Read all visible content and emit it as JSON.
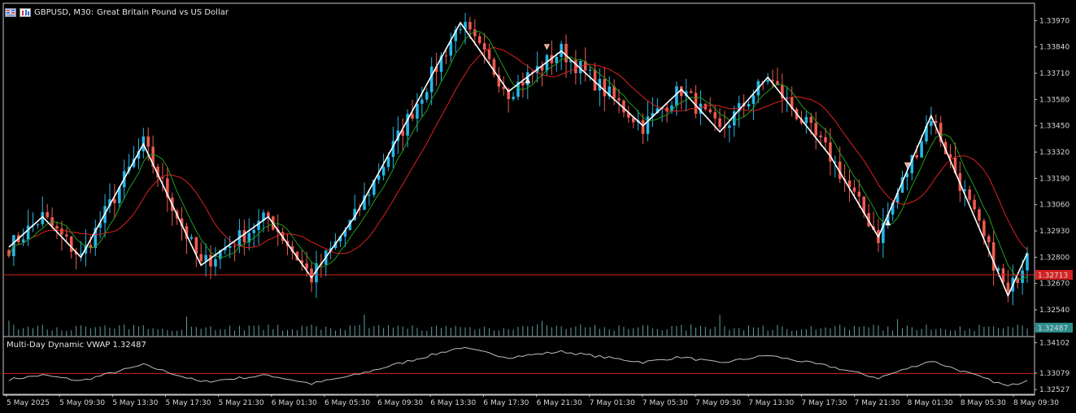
{
  "header": {
    "symbol_timeframe": "GBPUSD, M30:",
    "description": "Great Britain Pound vs US Dollar"
  },
  "icons": [
    "chart-menu-icon",
    "trade-panel-icon"
  ],
  "colors": {
    "background": "#000000",
    "bull_candle": "#26b7e6",
    "bear_candle": "#ef5b4e",
    "zigzag": "#ffffff",
    "ma_fast": "#1f9d1f",
    "ma_slow": "#e02020",
    "price_line": "#d42222",
    "volume": "#5fa0a0",
    "axis_text": "#d8d8d8"
  },
  "price_badge": {
    "label": "1.32713",
    "color": "#d42222"
  },
  "volume_badge": {
    "label": "1.32487",
    "color": "#2c8c8c"
  },
  "subwindow": {
    "title": "Multi-Day Dynamic VWAP 1.32487"
  },
  "chart_data": [
    {
      "type": "candlestick",
      "price_ticks": [
        "1.33970",
        "1.33840",
        "1.33710",
        "1.33580",
        "1.33450",
        "1.33320",
        "1.33190",
        "1.33060",
        "1.32930",
        "1.32800",
        "1.32670",
        "1.32540"
      ],
      "time_labels": [
        "5 May 2025",
        "5 May 09:30",
        "5 May 13:30",
        "5 May 17:30",
        "5 May 21:30",
        "6 May 01:30",
        "6 May 05:30",
        "6 May 09:30",
        "6 May 13:30",
        "6 May 17:30",
        "6 May 21:30",
        "7 May 01:30",
        "7 May 05:30",
        "7 May 09:30",
        "7 May 13:30",
        "7 May 17:30",
        "7 May 21:30",
        "8 May 01:30",
        "8 May 05:30",
        "8 May 09:30"
      ],
      "current_price": 1.32713,
      "ylim": [
        1.325,
        1.3404
      ],
      "zigzag_points": [
        [
          0,
          1.3285
        ],
        [
          7,
          1.33
        ],
        [
          15,
          1.328
        ],
        [
          28,
          1.3336
        ],
        [
          40,
          1.3276
        ],
        [
          54,
          1.33
        ],
        [
          63,
          1.327
        ],
        [
          72,
          1.33
        ],
        [
          94,
          1.3396
        ],
        [
          104,
          1.3362
        ],
        [
          115,
          1.3382
        ],
        [
          132,
          1.3345
        ],
        [
          140,
          1.3363
        ],
        [
          148,
          1.3342
        ],
        [
          158,
          1.3369
        ],
        [
          171,
          1.333
        ],
        [
          181,
          1.329
        ],
        [
          192,
          1.335
        ],
        [
          208,
          1.3261
        ],
        [
          212,
          1.3282
        ]
      ]
    },
    {
      "type": "line",
      "title": "Multi-Day Dynamic VWAP 1.32487",
      "ticks": [
        "1.34102",
        "1.33079",
        "1.32527"
      ],
      "ylim": [
        1.3245,
        1.342
      ],
      "reference_level": 1.3307,
      "last_value": 1.32487
    }
  ]
}
